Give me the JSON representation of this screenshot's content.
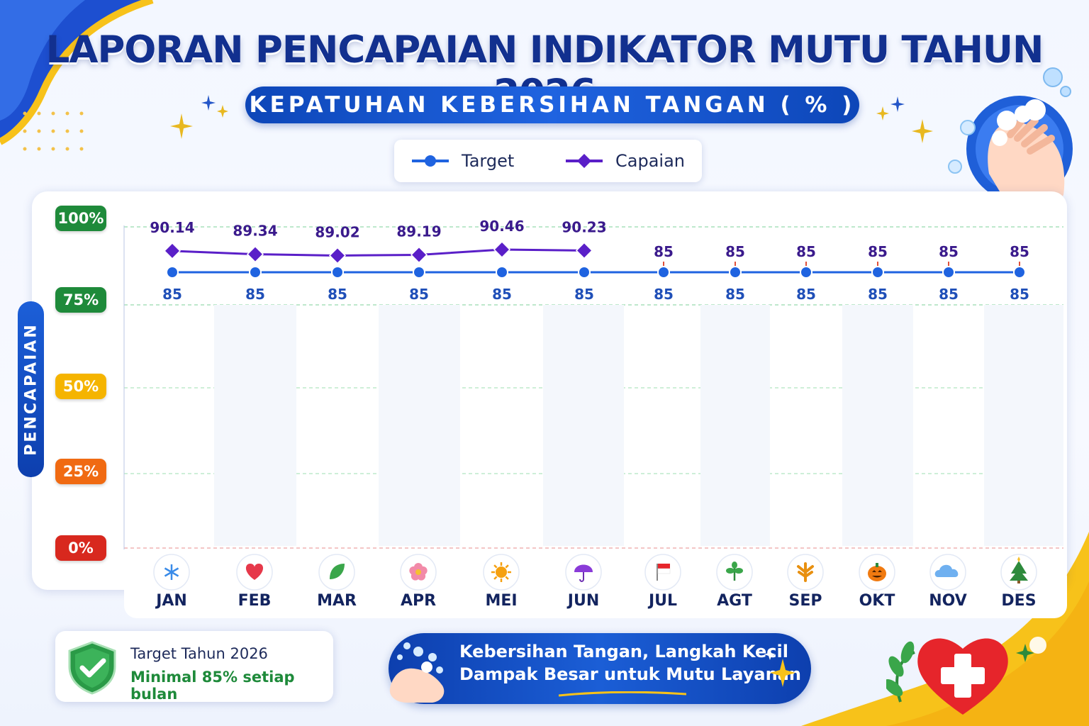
{
  "header": {
    "title": "LAPORAN PENCAPAIAN INDIKATOR MUTU TAHUN 2026",
    "subtitle": "KEPATUHAN KEBERSIHAN TANGAN ( % )"
  },
  "legend": {
    "target": "Target",
    "capaian": "Capaian"
  },
  "yaxis_label": "PENCAPAIAN",
  "y_ticks": [
    {
      "label": "100%",
      "color": "#1e8a3a"
    },
    {
      "label": "75%",
      "color": "#1e8a3a"
    },
    {
      "label": "50%",
      "color": "#f5b400"
    },
    {
      "label": "25%",
      "color": "#f06a12"
    },
    {
      "label": "0%",
      "color": "#d8281e"
    }
  ],
  "colors": {
    "target": "#1f63e0",
    "capaian": "#5a1fc8",
    "target_label": "#1f4fb8",
    "capaian_label": "#3a1a8c"
  },
  "chart_data": {
    "type": "line",
    "title": "KEPATUHAN KEBERSIHAN TANGAN ( % )",
    "xlabel": "",
    "ylabel": "PENCAPAIAN",
    "categories": [
      "JAN",
      "FEB",
      "MAR",
      "APR",
      "MEI",
      "JUN",
      "JUL",
      "AGT",
      "SEP",
      "OKT",
      "NOV",
      "DES"
    ],
    "series": [
      {
        "name": "Target",
        "values": [
          85,
          85,
          85,
          85,
          85,
          85,
          85,
          85,
          85,
          85,
          85,
          85
        ]
      },
      {
        "name": "Capaian",
        "values": [
          90.14,
          89.34,
          89.02,
          89.19,
          90.46,
          90.23,
          null,
          null,
          null,
          null,
          null,
          null
        ]
      }
    ],
    "upper_labels": [
      "90.14",
      "89.34",
      "89.02",
      "89.19",
      "90.46",
      "90.23",
      "85",
      "85",
      "85",
      "85",
      "85",
      "85"
    ],
    "target_labels": [
      "85",
      "85",
      "85",
      "85",
      "85",
      "85",
      "85",
      "85",
      "85",
      "85",
      "85",
      "85"
    ],
    "month_icons": [
      "snowflake-icon",
      "heart-icon",
      "leaf-icon",
      "flower-icon",
      "sun-icon",
      "umbrella-icon",
      "flag-icon",
      "sprout-icon",
      "autumn-leaf-icon",
      "pumpkin-icon",
      "cloud-icon",
      "tree-icon"
    ],
    "legend_position": "top-center",
    "grid": true
  },
  "footer": {
    "target_title": "Target Tahun 2026",
    "target_desc": "Minimal 85% setiap bulan",
    "slogan_line1": "Kebersihan Tangan, Langkah Kecil",
    "slogan_line2": "Dampak Besar untuk Mutu Layanan"
  }
}
